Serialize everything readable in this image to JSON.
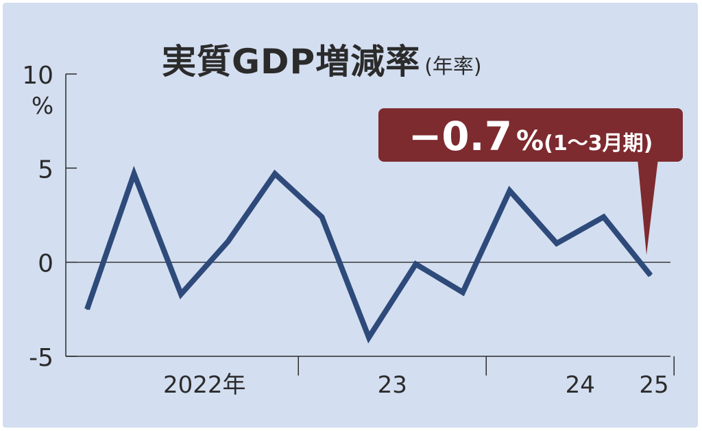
{
  "title": "実質GDP増減率",
  "subtitle": "(年率)",
  "callout": {
    "value": "−0.7",
    "unit": "%",
    "period": "(1〜3月期)",
    "color": "#7d2b2f"
  },
  "chart_data": {
    "type": "line",
    "title": "実質GDP増減率",
    "subtitle": "(年率)",
    "ylabel": "%",
    "ylim": [
      -5,
      10
    ],
    "y_ticks": [
      {
        "value": 10,
        "label": "10"
      },
      {
        "value": 5,
        "label": "5"
      },
      {
        "value": 0,
        "label": "0"
      },
      {
        "value": -5,
        "label": "-5"
      }
    ],
    "year_labels": [
      {
        "label": "2022年",
        "center_index": 2.5
      },
      {
        "label": "23",
        "center_index": 6.5
      },
      {
        "label": "24",
        "center_index": 10.5
      },
      {
        "label": "25",
        "center_index": 12.5
      }
    ],
    "year_separators": [
      4.5,
      8.5,
      12.5
    ],
    "x": [
      "2022 1-3",
      "2022 4-6",
      "2022 7-9",
      "2022 10-12",
      "2023 1-3",
      "2023 4-6",
      "2023 7-9",
      "2023 10-12",
      "2024 1-3",
      "2024 4-6",
      "2024 7-9",
      "2024 10-12",
      "2025 1-3"
    ],
    "series": [
      {
        "values": [
          -2.5,
          4.7,
          -1.7,
          1.1,
          4.7,
          2.4,
          -4.0,
          -0.1,
          -1.6,
          3.8,
          1.0,
          2.4,
          -0.7
        ],
        "color": "#2e4a7a"
      }
    ],
    "grid": false,
    "line_color": "#2e4a7a",
    "axis_color": "#2b2b2b"
  }
}
